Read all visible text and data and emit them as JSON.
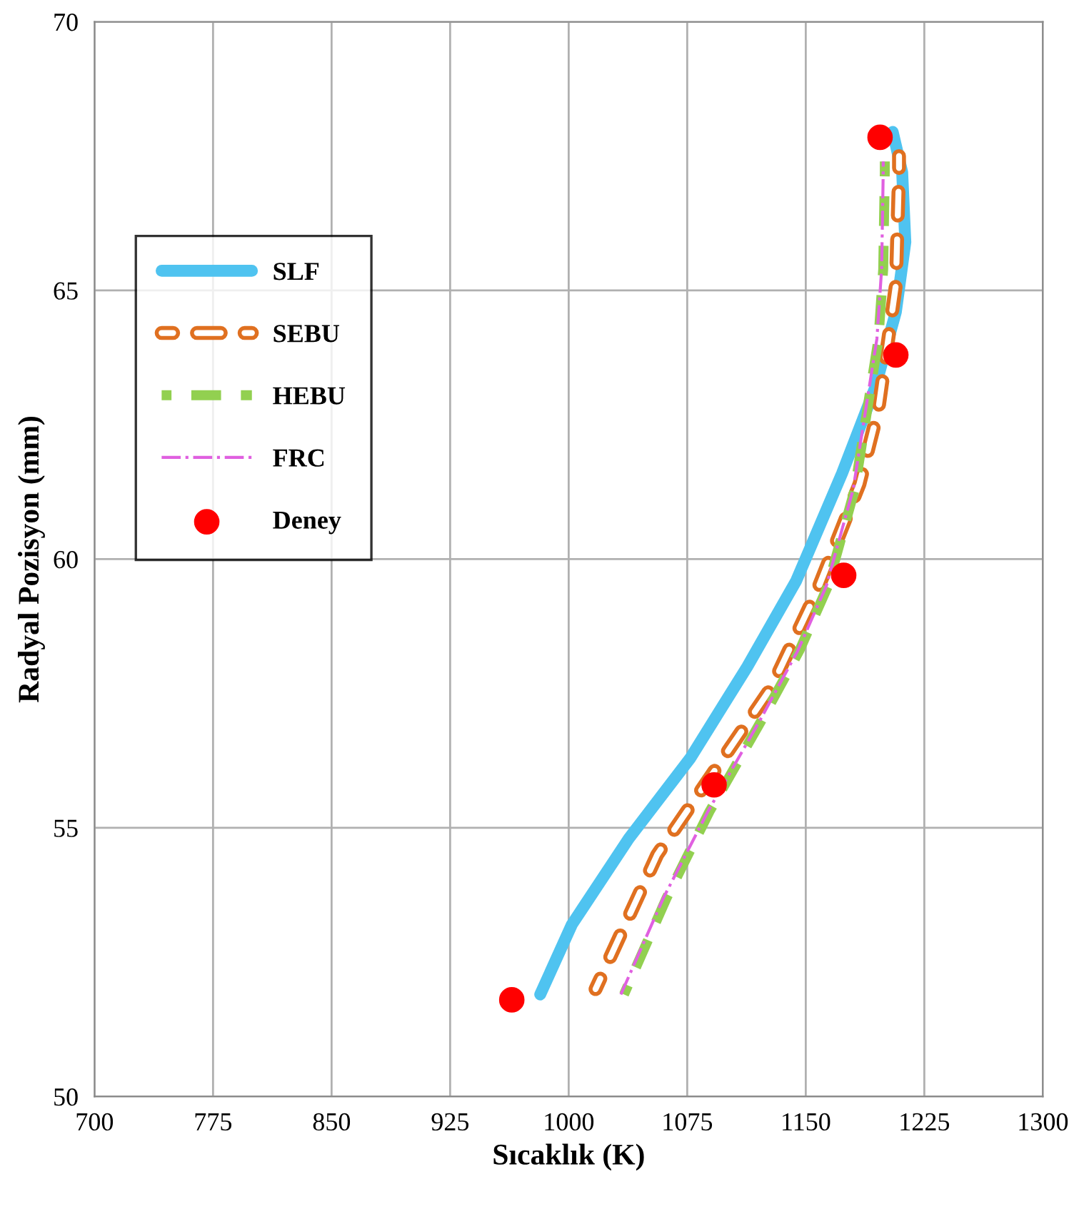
{
  "chart_data": {
    "type": "line",
    "xlabel": "Sıcaklık (K)",
    "ylabel": "Radyal Pozisyon (mm)",
    "xlim": [
      700,
      1300
    ],
    "xticks": [
      700,
      775,
      850,
      925,
      1000,
      1075,
      1150,
      1225,
      1300
    ],
    "ylim": [
      50,
      70
    ],
    "yticks": [
      50,
      55,
      60,
      65,
      70
    ],
    "grid": true,
    "legend": "left",
    "series": [
      {
        "name": "SLF",
        "color": "#4fc3f0",
        "line_style": "solid",
        "x": [
          982,
          1002,
          1038,
          1077,
          1113,
          1144,
          1173,
          1194,
          1207,
          1213,
          1211,
          1205
        ],
        "values": [
          51.9,
          53.2,
          54.8,
          56.3,
          58.0,
          59.6,
          61.6,
          63.2,
          64.6,
          65.9,
          67.2,
          67.95
        ]
      },
      {
        "name": "SEBU",
        "color": "#e07020",
        "line_style": "hollow",
        "x": [
          1017,
          1056,
          1128,
          1157,
          1184,
          1196,
          1207,
          1209,
          1209
        ],
        "values": [
          52.0,
          54.5,
          57.6,
          59.4,
          61.4,
          62.8,
          65.1,
          67.2,
          67.5
        ]
      },
      {
        "name": "HEBU",
        "color": "#92d050",
        "line_style": "dashed",
        "x": [
          1035,
          1062,
          1089,
          1122,
          1146,
          1164,
          1181,
          1189,
          1196,
          1199,
          1200,
          1200
        ],
        "values": [
          51.9,
          53.7,
          55.3,
          57.0,
          58.3,
          59.5,
          61.3,
          62.8,
          64.1,
          65.4,
          67.2,
          67.4
        ]
      },
      {
        "name": "FRC",
        "color": "#e060e0",
        "line_style": "dashdot",
        "x": [
          1033,
          1060,
          1088,
          1121,
          1145,
          1163,
          1180,
          1188,
          1195,
          1198,
          1199,
          1199
        ],
        "values": [
          51.9,
          53.7,
          55.3,
          57.0,
          58.3,
          59.5,
          61.3,
          62.8,
          64.1,
          65.4,
          67.2,
          67.4
        ]
      },
      {
        "name": "Deney",
        "color": "#ff0000",
        "type": "scatter",
        "marker": "circle",
        "x": [
          964,
          1092,
          1174,
          1207,
          1197
        ],
        "values": [
          51.8,
          55.8,
          59.7,
          63.8,
          67.85
        ]
      }
    ]
  }
}
